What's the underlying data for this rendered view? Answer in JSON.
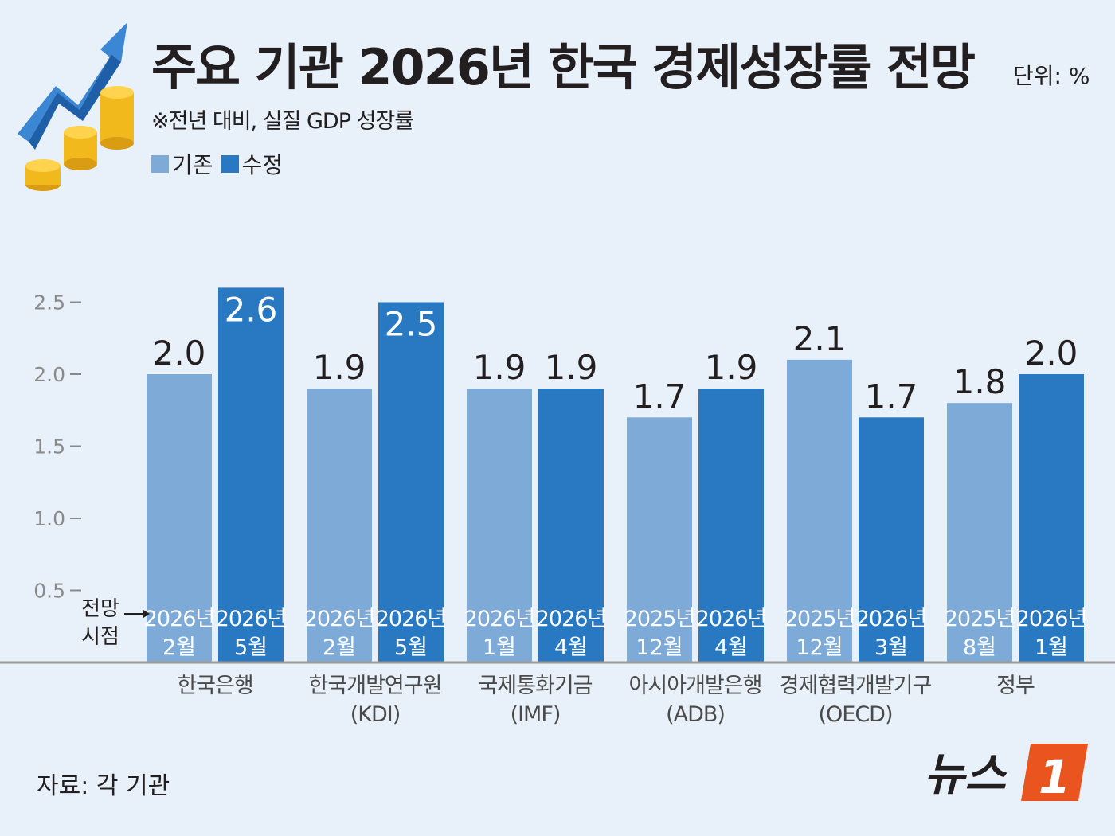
{
  "title": "주요 기관 2026년 한국 경제성장률 전망",
  "unit_label": "단위: %",
  "subtitle": "※전년 대비, 실질 GDP 성장률",
  "source": "자료: 각 기관",
  "logo": {
    "text": "뉴스",
    "mark": "1"
  },
  "time_marker": {
    "line1": "전망",
    "line2": "시점"
  },
  "colors": {
    "background": "#e8f1f9",
    "existing": "#7eaad8",
    "revised": "#2878c2",
    "logo_accent": "#e9541f",
    "text": "#231f20",
    "axis": "#8a8a8a"
  },
  "chart_data": {
    "type": "bar",
    "title": "주요 기관 2026년 한국 경제성장률 전망",
    "ylim": [
      0,
      2.6
    ],
    "yticks": [
      "0.5",
      "1.0",
      "1.5",
      "2.0",
      "2.5"
    ],
    "ytick_values": [
      0.5,
      1.0,
      1.5,
      2.0,
      2.5
    ],
    "legend_position": "top-left",
    "grid": false,
    "series": [
      {
        "name": "기존",
        "values": [
          2.0,
          1.9,
          1.9,
          1.7,
          2.1,
          1.8
        ]
      },
      {
        "name": "수정",
        "values": [
          2.6,
          2.5,
          1.9,
          1.9,
          1.7,
          2.0
        ]
      }
    ],
    "value_labels": [
      [
        "2.0",
        "1.9",
        "1.9",
        "1.7",
        "2.1",
        "1.8"
      ],
      [
        "2.6",
        "2.5",
        "1.9",
        "1.9",
        "1.7",
        "2.0"
      ]
    ],
    "forecast_dates": [
      [
        [
          "2026년",
          "2월"
        ],
        [
          "2026년",
          "5월"
        ]
      ],
      [
        [
          "2026년",
          "2월"
        ],
        [
          "2026년",
          "5월"
        ]
      ],
      [
        [
          "2026년",
          "1월"
        ],
        [
          "2026년",
          "4월"
        ]
      ],
      [
        [
          "2025년",
          "12월"
        ],
        [
          "2026년",
          "4월"
        ]
      ],
      [
        [
          "2025년",
          "12월"
        ],
        [
          "2026년",
          "3월"
        ]
      ],
      [
        [
          "2025년",
          "8월"
        ],
        [
          "2026년",
          "1월"
        ]
      ]
    ],
    "categories": [
      [
        "한국은행"
      ],
      [
        "한국개발연구원",
        "(KDI)"
      ],
      [
        "국제통화기금",
        "(IMF)"
      ],
      [
        "아시아개발은행",
        "(ADB)"
      ],
      [
        "경제협력개발기구",
        "(OECD)"
      ],
      [
        "정부"
      ]
    ]
  }
}
